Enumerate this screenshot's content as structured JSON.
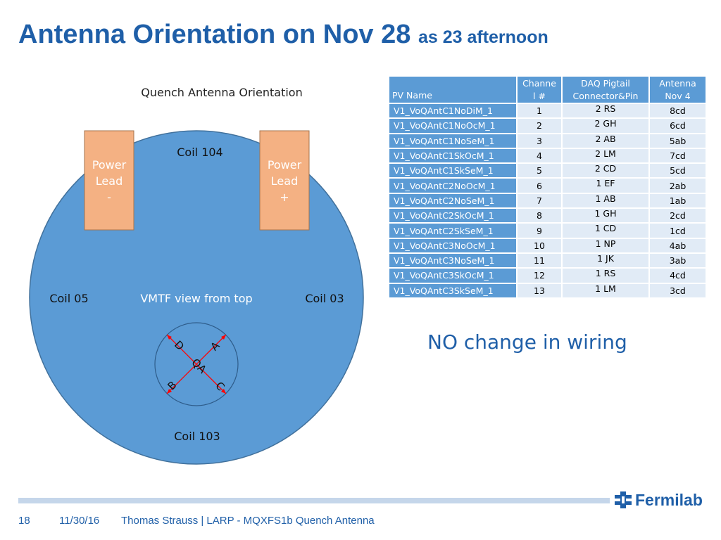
{
  "title": {
    "main": "Antenna Orientation on Nov 28",
    "sub": "as 23 afternoon"
  },
  "diagram": {
    "heading": "Quench Antenna Orientation",
    "power_lead_left": [
      "Power",
      "Lead",
      "-"
    ],
    "power_lead_right": [
      "Power",
      "Lead",
      "+"
    ],
    "coil_top": "Coil 104",
    "coil_left": "Coil 05",
    "coil_right": "Coil 03",
    "coil_bottom": "Coil 103",
    "center_label": "VMTF view from top",
    "qa_labels": {
      "A": "A",
      "B": "B",
      "C": "C",
      "D": "D",
      "QA": "QA"
    }
  },
  "table": {
    "headers": {
      "pv": "PV Name",
      "chan": [
        "Channe",
        "l #"
      ],
      "daq": [
        "DAQ Pigtail",
        "Connector&Pin"
      ],
      "ant": [
        "Antenna",
        "Nov 4"
      ]
    },
    "rows": [
      {
        "pv": "V1_VoQAntC1NoDiM_1",
        "chan": "1",
        "pin": "2 RS",
        "ant": "8cd"
      },
      {
        "pv": "V1_VoQAntC1NoOcM_1",
        "chan": "2",
        "pin": "2 GH",
        "ant": "6cd"
      },
      {
        "pv": "V1_VoQAntC1NoSeM_1",
        "chan": "3",
        "pin": "2 AB",
        "ant": "5ab"
      },
      {
        "pv": "V1_VoQAntC1SkOcM_1",
        "chan": "4",
        "pin": "2 LM",
        "ant": "7cd"
      },
      {
        "pv": "V1_VoQAntC1SkSeM_1",
        "chan": "5",
        "pin": "2 CD",
        "ant": "5cd"
      },
      {
        "pv": "V1_VoQAntC2NoOcM_1",
        "chan": "6",
        "pin": "1 EF",
        "ant": "2ab"
      },
      {
        "pv": "V1_VoQAntC2NoSeM_1",
        "chan": "7",
        "pin": "1 AB",
        "ant": "1ab"
      },
      {
        "pv": "V1_VoQAntC2SkOcM_1",
        "chan": "8",
        "pin": "1 GH",
        "ant": "2cd"
      },
      {
        "pv": "V1_VoQAntC2SkSeM_1",
        "chan": "9",
        "pin": "1 CD",
        "ant": "1cd"
      },
      {
        "pv": "V1_VoQAntC3NoOcM_1",
        "chan": "10",
        "pin": "1 NP",
        "ant": "4ab"
      },
      {
        "pv": "V1_VoQAntC3NoSeM_1",
        "chan": "11",
        "pin": "1 JK",
        "ant": "3ab"
      },
      {
        "pv": "V1_VoQAntC3SkOcM_1",
        "chan": "12",
        "pin": "1 RS",
        "ant": "4cd"
      },
      {
        "pv": "V1_VoQAntC3SkSeM_1",
        "chan": "13",
        "pin": "1 LM",
        "ant": "3cd"
      }
    ]
  },
  "note": "NO change in wiring",
  "footer": {
    "page": "18",
    "date": "11/30/16",
    "text": "Thomas Strauss | LARP - MQXFS1b Quench Antenna",
    "logo": "Fermilab"
  },
  "colors": {
    "title": "#1f5fa8",
    "circle": "#5b9bd5",
    "lead": "#f4b183",
    "arrow": "#ff0000"
  }
}
